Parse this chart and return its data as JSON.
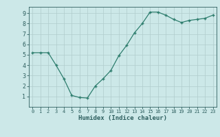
{
  "x": [
    0,
    1,
    2,
    3,
    4,
    5,
    6,
    7,
    8,
    9,
    10,
    11,
    12,
    13,
    14,
    15,
    16,
    17,
    18,
    19,
    20,
    21,
    22,
    23
  ],
  "y": [
    5.2,
    5.2,
    5.2,
    4.0,
    2.7,
    1.1,
    0.9,
    0.85,
    2.0,
    2.7,
    3.5,
    4.9,
    5.9,
    7.1,
    8.0,
    9.1,
    9.1,
    8.8,
    8.4,
    8.1,
    8.3,
    8.4,
    8.5,
    8.8
  ],
  "xlabel": "Humidex (Indice chaleur)",
  "line_color": "#2d7d6d",
  "marker": "+",
  "bg_color": "#cce8e8",
  "grid_color": "#b0cccc",
  "tick_label_color": "#2d5e5e",
  "axis_label_color": "#2d5e5e",
  "xlim": [
    -0.5,
    23.5
  ],
  "ylim": [
    0,
    9.6
  ],
  "yticks": [
    1,
    2,
    3,
    4,
    5,
    6,
    7,
    8,
    9
  ],
  "xticks": [
    0,
    1,
    2,
    3,
    4,
    5,
    6,
    7,
    8,
    9,
    10,
    11,
    12,
    13,
    14,
    15,
    16,
    17,
    18,
    19,
    20,
    21,
    22,
    23
  ],
  "xtick_fontsize": 5.0,
  "ytick_fontsize": 6.0,
  "xlabel_fontsize": 6.5,
  "linewidth": 0.9,
  "markersize": 3.5
}
